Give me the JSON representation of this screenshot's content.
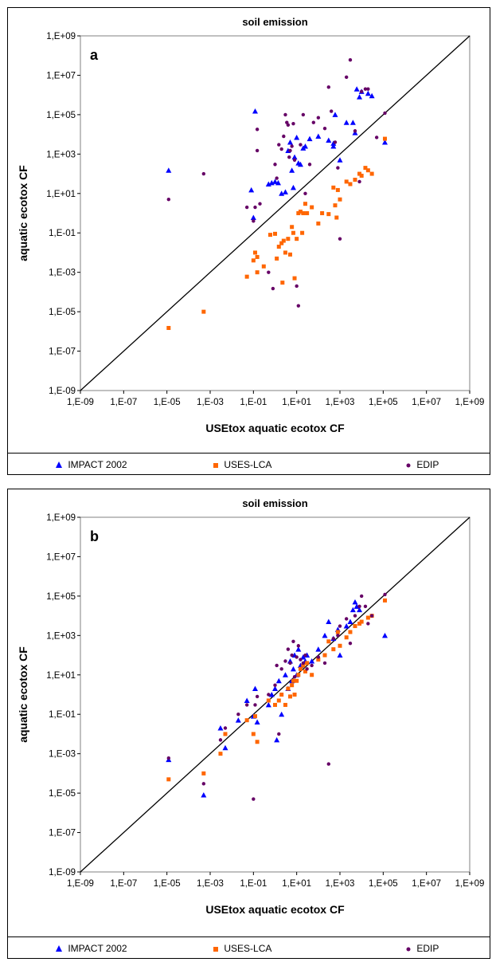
{
  "chart_data": [
    {
      "type": "scatter",
      "panel_label": "a",
      "title": "soil emission",
      "xlabel": "USEtox aquatic ecotox CF",
      "ylabel": "aquatic ecotox CF",
      "x_scale": "log",
      "y_scale": "log",
      "xlim": [
        1e-09,
        1000000000.0
      ],
      "ylim": [
        1e-09,
        1000000000.0
      ],
      "x_tick_labels": [
        "1,E-09",
        "1,E-07",
        "1,E-05",
        "1,E-03",
        "1,E-01",
        "1,E+01",
        "1,E+03",
        "1,E+05",
        "1,E+07",
        "1,E+09"
      ],
      "y_tick_labels": [
        "1,E+09",
        "1,E+07",
        "1,E+05",
        "1,E+03",
        "1,E+01",
        "1,E-01",
        "1,E-03",
        "1,E-05",
        "1,E-07",
        "1,E-09"
      ],
      "grid": false,
      "legend_position": "bottom",
      "reference_line": "1:1",
      "series": [
        {
          "name": "IMPACT 2002",
          "color": "#0000ff",
          "marker": "triangle",
          "points": [
            [
              1.2e-05,
              150
            ],
            [
              0.08,
              15
            ],
            [
              0.1,
              0.6
            ],
            [
              0.12,
              150000.0
            ],
            [
              0.5,
              30
            ],
            [
              0.7,
              35
            ],
            [
              1,
              40
            ],
            [
              1.4,
              35
            ],
            [
              2,
              10
            ],
            [
              3,
              12
            ],
            [
              4,
              1500
            ],
            [
              5,
              4000
            ],
            [
              6,
              150
            ],
            [
              7,
              20
            ],
            [
              8,
              700
            ],
            [
              10,
              7000
            ],
            [
              12,
              350
            ],
            [
              15,
              300
            ],
            [
              20,
              2000
            ],
            [
              25,
              2500
            ],
            [
              40,
              6000
            ],
            [
              100,
              8000
            ],
            [
              300,
              5000
            ],
            [
              500,
              3500
            ],
            [
              500,
              2500
            ],
            [
              600,
              100000.0
            ],
            [
              1000,
              500
            ],
            [
              2000,
              40000.0
            ],
            [
              4000,
              40000.0
            ],
            [
              5000,
              12000.0
            ],
            [
              6000,
              2000000.0
            ],
            [
              8000,
              800000.0
            ],
            [
              10000,
              1500000.0
            ],
            [
              20000.0,
              1200000.0
            ],
            [
              30000.0,
              900000.0
            ],
            [
              120000.0,
              4000
            ]
          ]
        },
        {
          "name": "USES-LCA",
          "color": "#ff6600",
          "marker": "square",
          "points": [
            [
              1.2e-05,
              1.5e-06
            ],
            [
              0.0005,
              1e-05
            ],
            [
              0.05,
              0.0006
            ],
            [
              0.1,
              0.004
            ],
            [
              0.12,
              0.01
            ],
            [
              0.15,
              0.006
            ],
            [
              0.15,
              0.001
            ],
            [
              0.3,
              0.002
            ],
            [
              0.6,
              0.08
            ],
            [
              1,
              0.09
            ],
            [
              1.2,
              0.005
            ],
            [
              1.5,
              0.02
            ],
            [
              2,
              0.03
            ],
            [
              2.2,
              0.0003
            ],
            [
              2.5,
              0.04
            ],
            [
              3,
              0.01
            ],
            [
              4,
              0.05
            ],
            [
              5,
              0.008
            ],
            [
              6,
              0.2
            ],
            [
              7,
              0.1
            ],
            [
              8,
              0.0005
            ],
            [
              10,
              0.05
            ],
            [
              12,
              1
            ],
            [
              15,
              1.2
            ],
            [
              18,
              0.1
            ],
            [
              20,
              1
            ],
            [
              25,
              3
            ],
            [
              30,
              1
            ],
            [
              50,
              2
            ],
            [
              100,
              0.3
            ],
            [
              150,
              1
            ],
            [
              300,
              0.9
            ],
            [
              500,
              20
            ],
            [
              600,
              2.5
            ],
            [
              700,
              0.6
            ],
            [
              800,
              15
            ],
            [
              1000,
              5
            ],
            [
              2000,
              40
            ],
            [
              3000,
              30
            ],
            [
              5000,
              50
            ],
            [
              8000,
              100
            ],
            [
              10000,
              80
            ],
            [
              15000,
              200
            ],
            [
              20000,
              150
            ],
            [
              30000,
              100
            ],
            [
              120000.0,
              6000
            ]
          ]
        },
        {
          "name": "EDIP",
          "color": "#660066",
          "marker": "circle",
          "points": [
            [
              1.2e-05,
              5
            ],
            [
              0.0005,
              100
            ],
            [
              0.05,
              2
            ],
            [
              0.1,
              0.4
            ],
            [
              0.12,
              2
            ],
            [
              0.15,
              18000.0
            ],
            [
              0.15,
              1500
            ],
            [
              0.2,
              3
            ],
            [
              0.5,
              0.001
            ],
            [
              0.8,
              0.00015
            ],
            [
              1,
              300
            ],
            [
              1.2,
              60
            ],
            [
              1.5,
              3000
            ],
            [
              2,
              1800
            ],
            [
              2.5,
              8000
            ],
            [
              3,
              100000.0
            ],
            [
              3.5,
              40000.0
            ],
            [
              4,
              30000.0
            ],
            [
              4.5,
              700
            ],
            [
              5,
              1500
            ],
            [
              6,
              2500
            ],
            [
              7,
              35000.0
            ],
            [
              8,
              500
            ],
            [
              10,
              0.0002
            ],
            [
              12,
              2e-05
            ],
            [
              15,
              3000
            ],
            [
              20,
              100000.0
            ],
            [
              25,
              10
            ],
            [
              40,
              300
            ],
            [
              60,
              40000.0
            ],
            [
              100,
              70000.0
            ],
            [
              200,
              20000.0
            ],
            [
              300,
              2500000.0
            ],
            [
              400,
              150000.0
            ],
            [
              600,
              4000
            ],
            [
              800,
              200
            ],
            [
              1000,
              0.05
            ],
            [
              2000,
              8000000.0
            ],
            [
              3000,
              60000000.0
            ],
            [
              5000,
              15000.0
            ],
            [
              8000,
              40
            ],
            [
              10000,
              1500000.0
            ],
            [
              15000,
              2000000.0
            ],
            [
              20000,
              2000000.0
            ],
            [
              50000,
              7000
            ],
            [
              120000.0,
              120000.0
            ]
          ]
        }
      ]
    },
    {
      "type": "scatter",
      "panel_label": "b",
      "title": "soil emission",
      "xlabel": "USEtox aquatic ecotox CF",
      "ylabel": "aquatic ecotox CF",
      "x_scale": "log",
      "y_scale": "log",
      "xlim": [
        1e-09,
        1000000000.0
      ],
      "ylim": [
        1e-09,
        1000000000.0
      ],
      "x_tick_labels": [
        "1,E-09",
        "1,E-07",
        "1,E-05",
        "1,E-03",
        "1,E-01",
        "1,E+01",
        "1,E+03",
        "1,E+05",
        "1,E+07",
        "1,E+09"
      ],
      "y_tick_labels": [
        "1,E+09",
        "1,E+07",
        "1,E+05",
        "1,E+03",
        "1,E+01",
        "1,E-01",
        "1,E-03",
        "1,E-05",
        "1,E-07",
        "1,E-09"
      ],
      "grid": false,
      "legend_position": "bottom",
      "reference_line": "1:1",
      "series": [
        {
          "name": "IMPACT 2002",
          "color": "#0000ff",
          "marker": "triangle",
          "points": [
            [
              1.2e-05,
              0.0005
            ],
            [
              0.0005,
              8e-06
            ],
            [
              0.003,
              0.02
            ],
            [
              0.005,
              0.002
            ],
            [
              0.02,
              0.05
            ],
            [
              0.05,
              0.5
            ],
            [
              0.1,
              0.08
            ],
            [
              0.12,
              2
            ],
            [
              0.15,
              0.04
            ],
            [
              0.5,
              0.3
            ],
            [
              0.7,
              1
            ],
            [
              1,
              2
            ],
            [
              1.2,
              0.005
            ],
            [
              1.5,
              5
            ],
            [
              2,
              0.1
            ],
            [
              3,
              10
            ],
            [
              4,
              2
            ],
            [
              5,
              50
            ],
            [
              6,
              5
            ],
            [
              7,
              20
            ],
            [
              8,
              100
            ],
            [
              10,
              10
            ],
            [
              12,
              200
            ],
            [
              15,
              30
            ],
            [
              20,
              80
            ],
            [
              25,
              50
            ],
            [
              30,
              100
            ],
            [
              50,
              50
            ],
            [
              100,
              200
            ],
            [
              200,
              1000
            ],
            [
              300,
              5000
            ],
            [
              500,
              700
            ],
            [
              800,
              2000
            ],
            [
              1000,
              100
            ],
            [
              2000,
              3000
            ],
            [
              3000,
              5000
            ],
            [
              4000,
              20000.0
            ],
            [
              5000,
              50000.0
            ],
            [
              6000,
              30000.0
            ],
            [
              8000,
              20000.0
            ],
            [
              120000.0,
              1000
            ]
          ]
        },
        {
          "name": "USES-LCA",
          "color": "#ff6600",
          "marker": "square",
          "points": [
            [
              1.2e-05,
              5e-05
            ],
            [
              0.0005,
              0.0001
            ],
            [
              0.003,
              0.001
            ],
            [
              0.005,
              0.01
            ],
            [
              0.05,
              0.05
            ],
            [
              0.1,
              0.01
            ],
            [
              0.12,
              0.08
            ],
            [
              0.15,
              0.004
            ],
            [
              0.5,
              0.5
            ],
            [
              1,
              0.3
            ],
            [
              1.5,
              0.5
            ],
            [
              2,
              1
            ],
            [
              3,
              0.3
            ],
            [
              4,
              2
            ],
            [
              5,
              0.8
            ],
            [
              6,
              3
            ],
            [
              7,
              5
            ],
            [
              8,
              1
            ],
            [
              10,
              5
            ],
            [
              12,
              10
            ],
            [
              15,
              20
            ],
            [
              20,
              30
            ],
            [
              25,
              15
            ],
            [
              30,
              40
            ],
            [
              50,
              10
            ],
            [
              100,
              60
            ],
            [
              200,
              100
            ],
            [
              300,
              500
            ],
            [
              500,
              200
            ],
            [
              800,
              1500
            ],
            [
              1000,
              300
            ],
            [
              2000,
              800
            ],
            [
              3000,
              1500
            ],
            [
              5000,
              3000
            ],
            [
              8000,
              4000
            ],
            [
              10000,
              5000
            ],
            [
              20000,
              8000
            ],
            [
              30000,
              10000.0
            ],
            [
              120000.0,
              60000.0
            ]
          ]
        },
        {
          "name": "EDIP",
          "color": "#660066",
          "marker": "circle",
          "points": [
            [
              1.2e-05,
              0.0006
            ],
            [
              0.0005,
              3e-05
            ],
            [
              0.003,
              0.005
            ],
            [
              0.005,
              0.02
            ],
            [
              0.02,
              0.1
            ],
            [
              0.05,
              0.3
            ],
            [
              0.1,
              5e-06
            ],
            [
              0.12,
              0.3
            ],
            [
              0.15,
              0.8
            ],
            [
              0.5,
              1
            ],
            [
              1,
              3
            ],
            [
              1.2,
              30
            ],
            [
              1.5,
              0.01
            ],
            [
              2,
              20
            ],
            [
              3,
              50
            ],
            [
              4,
              200
            ],
            [
              5,
              40
            ],
            [
              6,
              100
            ],
            [
              7,
              500
            ],
            [
              8,
              8
            ],
            [
              10,
              80
            ],
            [
              12,
              300
            ],
            [
              15,
              60
            ],
            [
              20,
              40
            ],
            [
              25,
              100
            ],
            [
              30,
              20
            ],
            [
              50,
              30
            ],
            [
              100,
              80
            ],
            [
              200,
              40
            ],
            [
              300,
              0.0003
            ],
            [
              500,
              700
            ],
            [
              800,
              1000
            ],
            [
              1000,
              3000
            ],
            [
              2000,
              7000
            ],
            [
              3000,
              400
            ],
            [
              5000,
              10000.0
            ],
            [
              8000,
              30000.0
            ],
            [
              10000,
              100000.0
            ],
            [
              15000,
              30000.0
            ],
            [
              20000,
              4000
            ],
            [
              30000,
              10000.0
            ],
            [
              120000.0,
              120000.0
            ]
          ]
        }
      ]
    }
  ]
}
